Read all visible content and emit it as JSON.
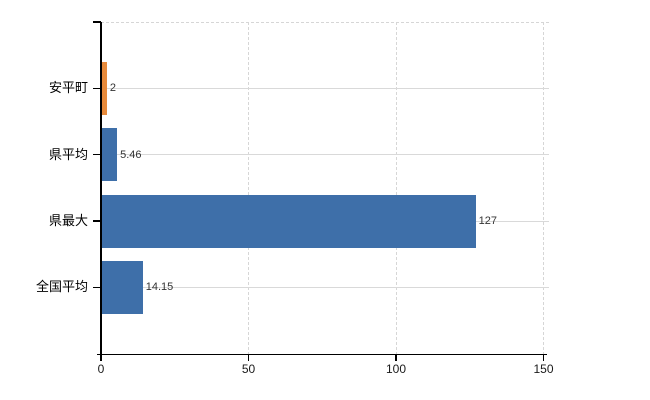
{
  "chart_data": {
    "type": "bar",
    "orientation": "horizontal",
    "title": "",
    "categories": [
      "安平町",
      "県平均",
      "県最大",
      "全国平均"
    ],
    "values": [
      2,
      5.46,
      127,
      14.15
    ],
    "value_labels": [
      "2",
      "5.46",
      "127",
      "14.15"
    ],
    "bar_colors": [
      "#E78A3B",
      "#3E6FA9",
      "#3E6FA9",
      "#3E6FA9"
    ],
    "highlight_color": "#E78A3B",
    "default_color": "#3E6FA9",
    "x_tick_labels": [
      "0",
      "50",
      "100",
      "150"
    ],
    "x_tick_values": [
      0,
      50,
      100,
      150
    ],
    "xlim": [
      0,
      150
    ],
    "grid": true,
    "legend": false,
    "gridline_solid_color": "#D9D9D9",
    "gridline_dashed_color": "#D6D6D6",
    "axis_color": "#000000",
    "category_label_color": "#000000",
    "value_label_color": "#333333"
  }
}
